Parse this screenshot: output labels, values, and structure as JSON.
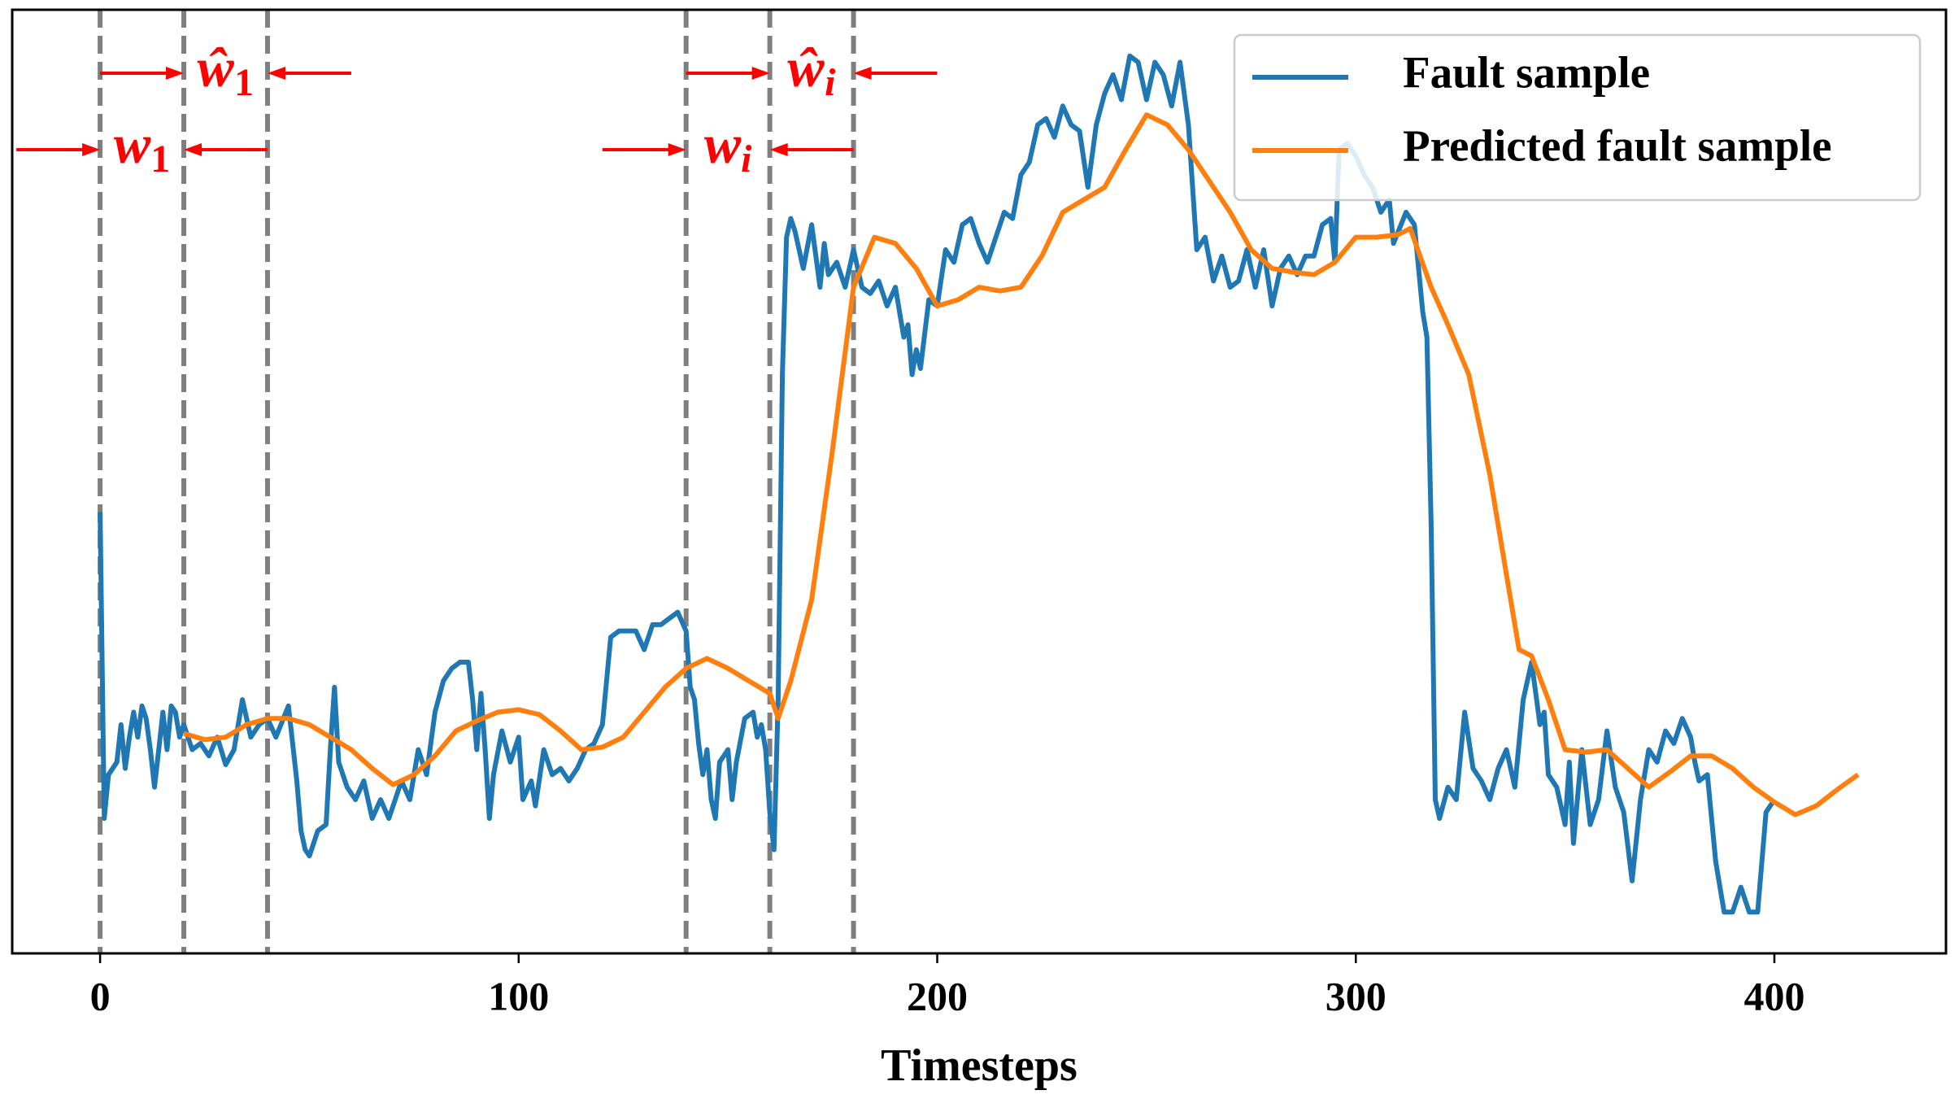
{
  "chart_data": {
    "type": "line",
    "xlabel": "Timesteps",
    "xlim": [
      -21,
      441
    ],
    "xticks": [
      0,
      100,
      200,
      300,
      400
    ],
    "ylim": [
      0,
      755
    ],
    "legend": "upper right",
    "vlines": [
      0,
      20,
      40,
      140,
      160,
      180
    ],
    "vline_color": "#7f7f7f",
    "annotation_color": "#ff0000",
    "annotations": [
      {
        "base": "w",
        "sub": "1",
        "x": [
          0,
          20
        ]
      },
      {
        "base": "ŵ",
        "sub": "1",
        "x": [
          20,
          40
        ]
      },
      {
        "base": "w",
        "sub": "i",
        "x": [
          140,
          160
        ]
      },
      {
        "base": "ŵ",
        "sub": "i",
        "x": [
          160,
          180
        ]
      }
    ],
    "series": [
      {
        "name": "Fault sample",
        "color": "#1f77b4",
        "x": [
          0,
          1,
          2,
          4,
          5,
          6,
          7,
          8,
          9,
          10,
          11,
          12,
          13,
          14,
          15,
          16,
          17,
          18,
          19,
          20,
          22,
          24,
          26,
          28,
          30,
          32,
          34,
          36,
          38,
          40,
          42,
          45,
          47,
          48,
          49,
          50,
          52,
          54,
          55,
          56,
          57,
          59,
          61,
          63,
          65,
          67,
          69,
          70,
          72,
          74,
          76,
          78,
          80,
          82,
          84,
          86,
          88,
          89,
          90,
          91,
          92,
          93,
          94,
          96,
          98,
          100,
          101,
          103,
          104,
          106,
          108,
          110,
          112,
          114,
          116,
          118,
          120,
          122,
          124,
          126,
          128,
          130,
          132,
          134,
          136,
          138,
          140,
          141,
          142,
          143,
          144,
          145,
          146,
          147,
          148,
          150,
          151,
          152,
          154,
          156,
          157,
          158,
          159,
          160,
          161,
          162,
          163,
          164,
          165,
          166,
          168,
          170,
          172,
          173,
          174,
          176,
          178,
          180,
          182,
          184,
          186,
          188,
          190,
          192,
          193,
          194,
          195,
          196,
          198,
          200,
          202,
          204,
          206,
          208,
          210,
          212,
          214,
          216,
          218,
          220,
          222,
          224,
          226,
          228,
          230,
          232,
          234,
          236,
          238,
          240,
          242,
          244,
          246,
          248,
          250,
          252,
          254,
          256,
          258,
          260,
          262,
          264,
          266,
          268,
          270,
          272,
          274,
          276,
          278,
          280,
          282,
          284,
          286,
          288,
          290,
          292,
          294,
          295,
          296,
          298,
          300,
          302,
          304,
          306,
          308,
          309,
          312,
          314,
          316,
          317,
          318,
          319,
          320,
          322,
          324,
          326,
          328,
          330,
          332,
          334,
          336,
          338,
          340,
          342,
          344,
          345,
          346,
          348,
          350,
          351,
          352,
          354,
          356,
          358,
          360,
          362,
          364,
          366,
          368,
          370,
          372,
          374,
          376,
          378,
          380,
          381,
          382,
          384,
          386,
          388,
          390,
          392,
          394,
          396,
          398,
          400
        ],
        "values": [
          353,
          108,
          143,
          153,
          183,
          148,
          173,
          193,
          173,
          198,
          188,
          163,
          133,
          163,
          193,
          163,
          198,
          193,
          173,
          183,
          163,
          168,
          158,
          173,
          151,
          163,
          203,
          173,
          183,
          188,
          173,
          198,
          138,
          98,
          83,
          78,
          98,
          103,
          163,
          213,
          153,
          133,
          123,
          138,
          108,
          123,
          108,
          118,
          138,
          123,
          163,
          143,
          193,
          218,
          228,
          233,
          233,
          203,
          163,
          208,
          163,
          108,
          143,
          178,
          153,
          173,
          123,
          138,
          118,
          163,
          143,
          148,
          138,
          148,
          163,
          168,
          183,
          253,
          258,
          258,
          258,
          243,
          263,
          263,
          268,
          273,
          258,
          213,
          203,
          168,
          143,
          163,
          123,
          108,
          153,
          163,
          123,
          153,
          188,
          193,
          173,
          183,
          163,
          113,
          83,
          203,
          463,
          573,
          588,
          578,
          548,
          583,
          533,
          568,
          543,
          553,
          533,
          563,
          533,
          528,
          538,
          518,
          533,
          493,
          503,
          463,
          483,
          468,
          523,
          518,
          563,
          553,
          583,
          588,
          568,
          553,
          573,
          593,
          588,
          623,
          633,
          663,
          668,
          653,
          678,
          663,
          658,
          613,
          663,
          688,
          703,
          683,
          718,
          713,
          683,
          713,
          703,
          678,
          713,
          663,
          563,
          573,
          538,
          558,
          533,
          538,
          563,
          533,
          563,
          518,
          548,
          558,
          543,
          558,
          558,
          583,
          588,
          553,
          643,
          648,
          638,
          623,
          613,
          593,
          603,
          568,
          593,
          583,
          513,
          493,
          343,
          123,
          108,
          133,
          123,
          193,
          148,
          138,
          123,
          148,
          163,
          133,
          203,
          233,
          183,
          193,
          143,
          133,
          103,
          153,
          88,
          163,
          103,
          123,
          178,
          133,
          113,
          58,
          123,
          163,
          153,
          178,
          168,
          188,
          173,
          153,
          138,
          143,
          73,
          33,
          33,
          53,
          33,
          33,
          113,
          123
        ]
      },
      {
        "name": "Predicted fault sample",
        "color": "#ff7f0e",
        "x": [
          20,
          25,
          30,
          35,
          40,
          45,
          50,
          55,
          60,
          65,
          70,
          75,
          80,
          85,
          90,
          95,
          100,
          105,
          110,
          115,
          120,
          125,
          130,
          135,
          140,
          145,
          150,
          155,
          160,
          162,
          165,
          170,
          175,
          180,
          185,
          190,
          195,
          200,
          205,
          210,
          215,
          220,
          225,
          230,
          235,
          240,
          245,
          250,
          255,
          260,
          265,
          270,
          275,
          280,
          285,
          290,
          295,
          300,
          305,
          310,
          313,
          318,
          322,
          327,
          332,
          336,
          339,
          342,
          346,
          350,
          355,
          360,
          365,
          370,
          375,
          380,
          385,
          390,
          395,
          400,
          405,
          410,
          415,
          420
        ],
        "values": [
          176,
          171,
          173,
          183,
          188,
          188,
          183,
          173,
          163,
          148,
          135,
          143,
          158,
          178,
          186,
          193,
          195,
          191,
          178,
          163,
          165,
          173,
          193,
          213,
          228,
          236,
          228,
          218,
          208,
          188,
          218,
          283,
          403,
          533,
          573,
          568,
          548,
          518,
          523,
          533,
          530,
          533,
          558,
          593,
          603,
          613,
          643,
          671,
          663,
          643,
          618,
          593,
          563,
          548,
          545,
          543,
          553,
          573,
          573,
          575,
          580,
          533,
          503,
          463,
          383,
          303,
          243,
          238,
          203,
          163,
          161,
          163,
          148,
          133,
          145,
          158,
          158,
          148,
          133,
          121,
          111,
          118,
          131,
          143
        ]
      }
    ]
  }
}
